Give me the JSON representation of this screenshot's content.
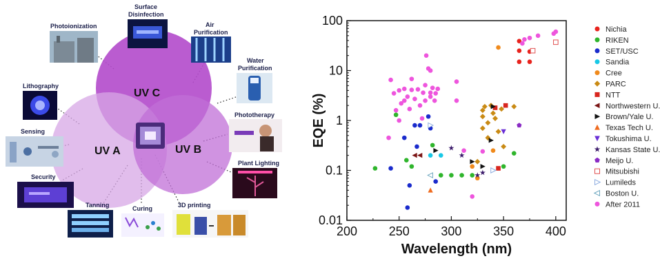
{
  "diagram": {
    "circles": [
      {
        "label": "UV C",
        "color": "#b048c8"
      },
      {
        "label": "UV A",
        "color": "#cf9ce0"
      },
      {
        "label": "UV B",
        "color": "#be66d4"
      }
    ],
    "applications": [
      {
        "label": "Photoionization",
        "icon": "factory-photo"
      },
      {
        "label": "Surface",
        "label2": "Disinfection",
        "icon": "disinfection-lamp-photo"
      },
      {
        "label": "Air",
        "label2": "Purification",
        "icon": "air-purifier-photo"
      },
      {
        "label": "Water",
        "label2": "Purification",
        "icon": "water-bottle-photo"
      },
      {
        "label": "Lithography",
        "icon": "lithography-glow-photo"
      },
      {
        "label": "Phototherapy",
        "icon": "phototherapy-photo"
      },
      {
        "label": "Sensing",
        "icon": "sensing-lab-photo"
      },
      {
        "label": "Plant Lighting",
        "icon": "plant-lighting-photo"
      },
      {
        "label": "Security",
        "icon": "security-uv-photo"
      },
      {
        "label": "Tanning",
        "icon": "tanning-bed-photo"
      },
      {
        "label": "Curing",
        "icon": "curing-molecules-photo"
      },
      {
        "label": "3D printing",
        "icon": "3d-printing-photo"
      }
    ]
  },
  "chart_data": {
    "type": "scatter",
    "xlabel": "Wavelength (nm)",
    "ylabel": "EQE (%)",
    "xlim": [
      200,
      410
    ],
    "ylim": [
      0.01,
      100
    ],
    "yscale": "log",
    "xticks": [
      "200",
      "250",
      "300",
      "350",
      "400"
    ],
    "yticks": [
      "0.01",
      "0.1",
      "1",
      "10",
      "100"
    ],
    "xtick_values": [
      200,
      250,
      300,
      350,
      400
    ],
    "ytick_values": [
      0.01,
      0.1,
      1,
      10,
      100
    ],
    "grid": false,
    "legend_position": "right",
    "series": [
      {
        "name": "Nichia",
        "color": "#e8231d",
        "marker": "circle",
        "points": [
          [
            365,
            39
          ],
          [
            365,
            25
          ],
          [
            365,
            15
          ],
          [
            375,
            15
          ],
          [
            375,
            24
          ]
        ]
      },
      {
        "name": "RIKEN",
        "color": "#2fb52c",
        "marker": "circle",
        "points": [
          [
            227,
            0.11
          ],
          [
            247,
            1.3
          ],
          [
            257,
            0.16
          ],
          [
            262,
            0.12
          ],
          [
            282,
            0.32
          ],
          [
            290,
            0.08
          ],
          [
            300,
            0.08
          ],
          [
            310,
            0.08
          ],
          [
            320,
            0.08
          ],
          [
            350,
            0.12
          ],
          [
            360,
            0.22
          ]
        ]
      },
      {
        "name": "SET/USC",
        "color": "#1a2bcc",
        "marker": "circle",
        "points": [
          [
            242,
            0.11
          ],
          [
            255,
            0.45
          ],
          [
            258,
            0.018
          ],
          [
            260,
            0.05
          ],
          [
            265,
            0.8
          ],
          [
            267,
            0.3
          ],
          [
            270,
            0.8
          ],
          [
            278,
            1.2
          ],
          [
            280,
            0.7
          ],
          [
            285,
            0.06
          ]
        ]
      },
      {
        "name": "Sandia",
        "color": "#18c8e6",
        "marker": "circle",
        "points": [
          [
            280,
            0.2
          ],
          [
            290,
            0.2
          ]
        ]
      },
      {
        "name": "Cree",
        "color": "#f08a1c",
        "marker": "circle",
        "points": [
          [
            320,
            0.12
          ],
          [
            325,
            0.07
          ],
          [
            340,
            0.25
          ],
          [
            345,
            29
          ]
        ]
      },
      {
        "name": "PARC",
        "color": "#c98a14",
        "marker": "diamond",
        "points": [
          [
            325,
            0.15
          ],
          [
            330,
            0.7
          ],
          [
            330,
            1.2
          ],
          [
            330,
            1.6
          ],
          [
            332,
            1.9
          ],
          [
            335,
            0.9
          ],
          [
            335,
            0.45
          ],
          [
            338,
            2.0
          ],
          [
            340,
            1.4
          ],
          [
            342,
            1.1
          ],
          [
            345,
            0.6
          ],
          [
            348,
            1.7
          ],
          [
            350,
            0.3
          ],
          [
            360,
            1.9
          ]
        ]
      },
      {
        "name": "NTT",
        "color": "#d8261f",
        "marker": "square",
        "points": [
          [
            342,
            1.8
          ],
          [
            345,
            0.11
          ],
          [
            352,
            2.0
          ]
        ]
      },
      {
        "name": "Northwestern U.",
        "color": "#7a1414",
        "marker": "triangle-left",
        "points": [
          [
            265,
            0.2
          ],
          [
            270,
            0.2
          ]
        ]
      },
      {
        "name": "Brown/Yale U.",
        "color": "#111111",
        "marker": "triangle-right",
        "points": [
          [
            285,
            0.25
          ],
          [
            320,
            0.15
          ],
          [
            330,
            0.12
          ],
          [
            338,
            0.4
          ],
          [
            340,
            1.9
          ]
        ]
      },
      {
        "name": "Texas Tech U.",
        "color": "#ef6b1f",
        "marker": "triangle-up",
        "points": [
          [
            280,
            0.04
          ]
        ]
      },
      {
        "name": "Tokushima U.",
        "color": "#6a2fd6",
        "marker": "triangle-down",
        "points": [
          [
            350,
            0.6
          ]
        ]
      },
      {
        "name": "Kansas State U.",
        "color": "#3b1a6a",
        "marker": "star",
        "points": [
          [
            300,
            0.28
          ],
          [
            310,
            0.2
          ],
          [
            325,
            0.08
          ],
          [
            330,
            0.09
          ]
        ]
      },
      {
        "name": "Meijo U.",
        "color": "#8a2bc4",
        "marker": "pentagon",
        "points": [
          [
            365,
            0.8
          ]
        ]
      },
      {
        "name": "Mitsubishi",
        "color": "#e05050",
        "marker": "square-open",
        "points": [
          [
            378,
            25
          ],
          [
            400,
            37
          ]
        ]
      },
      {
        "name": "Lumileds",
        "color": "#8faee0",
        "marker": "triangle-right-open",
        "points": [
          [
            280,
            0.8
          ],
          [
            340,
            0.1
          ]
        ]
      },
      {
        "name": "Boston U.",
        "color": "#6fa8c0",
        "marker": "triangle-left-open",
        "points": [
          [
            280,
            0.08
          ]
        ]
      },
      {
        "name": "After 2011",
        "color": "#ee55dd",
        "marker": "circle",
        "points": [
          [
            240,
            0.45
          ],
          [
            242,
            6.5
          ],
          [
            245,
            3.5
          ],
          [
            247,
            1.6
          ],
          [
            250,
            4
          ],
          [
            250,
            1.0
          ],
          [
            252,
            2.2
          ],
          [
            255,
            4.3
          ],
          [
            255,
            2.5
          ],
          [
            258,
            3.0
          ],
          [
            260,
            1.7
          ],
          [
            262,
            4.1
          ],
          [
            262,
            6.8
          ],
          [
            265,
            2.7
          ],
          [
            268,
            4.2
          ],
          [
            270,
            2.0
          ],
          [
            272,
            1.1
          ],
          [
            273,
            3.6
          ],
          [
            275,
            5.1
          ],
          [
            275,
            2.5
          ],
          [
            276,
            20
          ],
          [
            278,
            11
          ],
          [
            280,
            10
          ],
          [
            280,
            3.0
          ],
          [
            282,
            4.5
          ],
          [
            284,
            2.5
          ],
          [
            285,
            3.5
          ],
          [
            287,
            4.3
          ],
          [
            280,
            3.6
          ],
          [
            305,
            6
          ],
          [
            305,
            2.5
          ],
          [
            312,
            0.25
          ],
          [
            320,
            0.03
          ],
          [
            330,
            0.24
          ],
          [
            368,
            35
          ],
          [
            370,
            42
          ],
          [
            375,
            45
          ],
          [
            383,
            50
          ],
          [
            398,
            55
          ],
          [
            400,
            60
          ]
        ]
      }
    ]
  }
}
